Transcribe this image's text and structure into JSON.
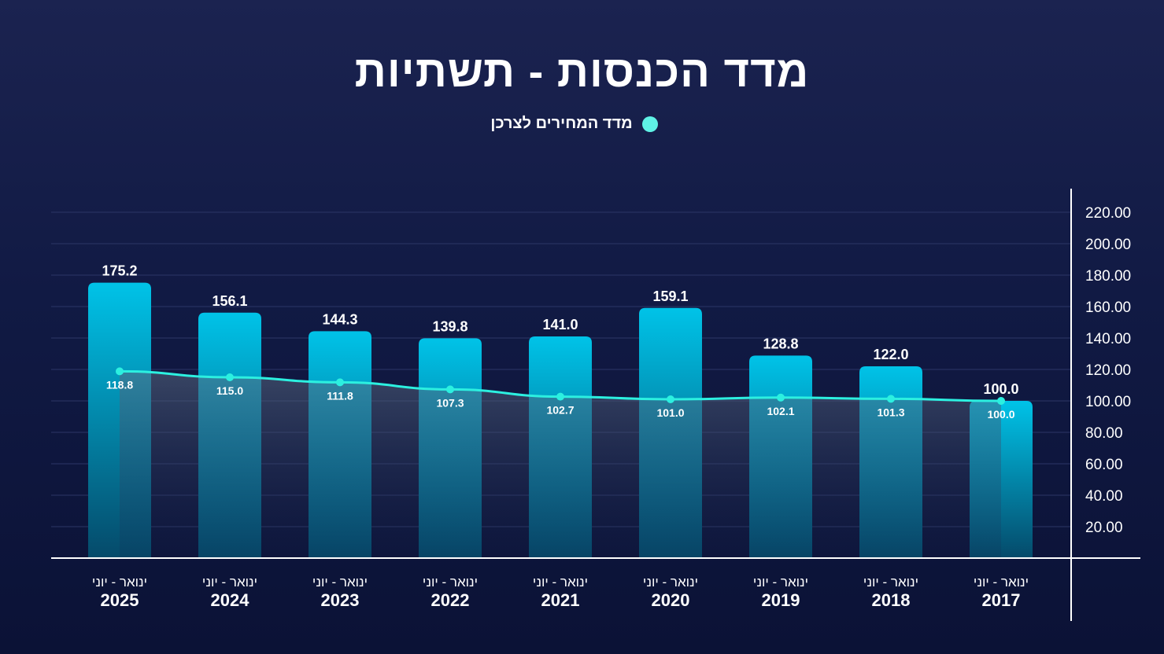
{
  "title": "מדד הכנסות - תשתיות",
  "legend": {
    "label": "מדד המחירים לצרכן",
    "color": "#5ff2e6"
  },
  "chart_data": {
    "type": "bar",
    "categories": [
      {
        "period": "ינואר - יוני",
        "year": "2025"
      },
      {
        "period": "ינואר - יוני",
        "year": "2024"
      },
      {
        "period": "ינואר - יוני",
        "year": "2023"
      },
      {
        "period": "ינואר - יוני",
        "year": "2022"
      },
      {
        "period": "ינואר - יוני",
        "year": "2021"
      },
      {
        "period": "ינואר - יוני",
        "year": "2020"
      },
      {
        "period": "ינואר - יוני",
        "year": "2019"
      },
      {
        "period": "ינואר - יוני",
        "year": "2018"
      },
      {
        "period": "ינואר - יוני",
        "year": "2017"
      }
    ],
    "bars": {
      "values": [
        175.2,
        156.1,
        144.3,
        139.8,
        141.0,
        159.1,
        128.8,
        122.0,
        100.0
      ],
      "labels": [
        "175.2",
        "156.1",
        "144.3",
        "139.8",
        "141.0",
        "159.1",
        "128.8",
        "122.0",
        "100.0"
      ],
      "color_top": "#00c3e8",
      "color_bottom": "#054a6a"
    },
    "series": [
      {
        "name": "מדד המחירים לצרכן",
        "type": "line",
        "values": [
          118.8,
          115.0,
          111.8,
          107.3,
          102.7,
          101.0,
          102.1,
          101.3,
          100.0
        ],
        "labels": [
          "118.8",
          "115.0",
          "111.8",
          "107.3",
          "102.7",
          "101.0",
          "102.1",
          "101.3",
          "100.0"
        ],
        "color": "#2cf0e0"
      }
    ],
    "y_axis": {
      "side": "right",
      "ticks": [
        "20.00",
        "40.00",
        "60.00",
        "80.00",
        "100.00",
        "120.00",
        "140.00",
        "160.00",
        "180.00",
        "200.00",
        "220.00"
      ],
      "ylim": [
        0,
        220
      ]
    },
    "grid": true
  }
}
